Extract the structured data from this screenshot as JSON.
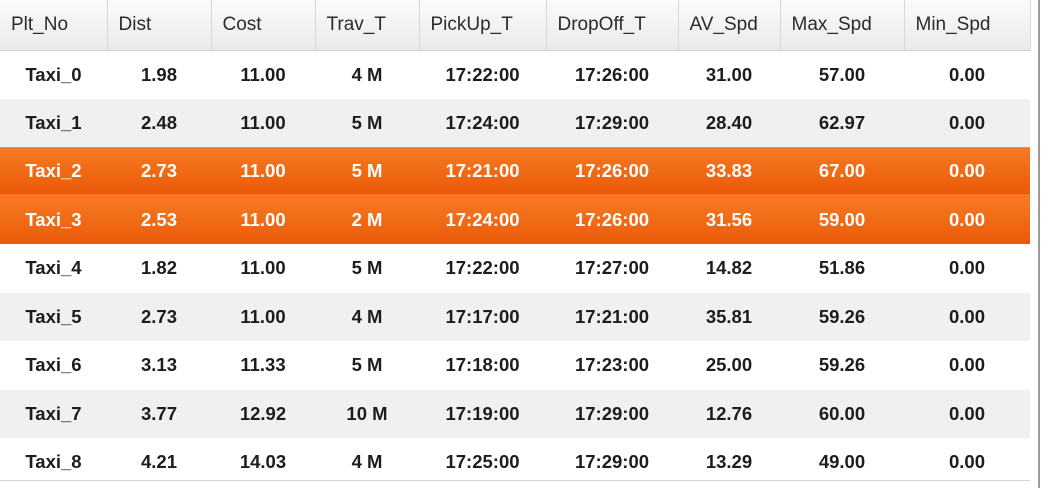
{
  "grid": {
    "columns": [
      "Plt_No",
      "Dist",
      "Cost",
      "Trav_T",
      "PickUp_T",
      "DropOff_T",
      "AV_Spd",
      "Max_Spd",
      "Min_Spd"
    ],
    "rows": [
      {
        "cells": [
          "Taxi_0",
          "1.98",
          "11.00",
          "4 M",
          "17:22:00",
          "17:26:00",
          "31.00",
          "57.00",
          "0.00"
        ],
        "selected": false
      },
      {
        "cells": [
          "Taxi_1",
          "2.48",
          "11.00",
          "5 M",
          "17:24:00",
          "17:29:00",
          "28.40",
          "62.97",
          "0.00"
        ],
        "selected": false
      },
      {
        "cells": [
          "Taxi_2",
          "2.73",
          "11.00",
          "5 M",
          "17:21:00",
          "17:26:00",
          "33.83",
          "67.00",
          "0.00"
        ],
        "selected": true
      },
      {
        "cells": [
          "Taxi_3",
          "2.53",
          "11.00",
          "2 M",
          "17:24:00",
          "17:26:00",
          "31.56",
          "59.00",
          "0.00"
        ],
        "selected": true
      },
      {
        "cells": [
          "Taxi_4",
          "1.82",
          "11.00",
          "5 M",
          "17:22:00",
          "17:27:00",
          "14.82",
          "51.86",
          "0.00"
        ],
        "selected": false
      },
      {
        "cells": [
          "Taxi_5",
          "2.73",
          "11.00",
          "4 M",
          "17:17:00",
          "17:21:00",
          "35.81",
          "59.26",
          "0.00"
        ],
        "selected": false
      },
      {
        "cells": [
          "Taxi_6",
          "3.13",
          "11.33",
          "5 M",
          "17:18:00",
          "17:23:00",
          "25.00",
          "59.26",
          "0.00"
        ],
        "selected": false
      },
      {
        "cells": [
          "Taxi_7",
          "3.77",
          "12.92",
          "10 M",
          "17:19:00",
          "17:29:00",
          "12.76",
          "60.00",
          "0.00"
        ],
        "selected": false
      },
      {
        "cells": [
          "Taxi_8",
          "4.21",
          "14.03",
          "4 M",
          "17:25:00",
          "17:29:00",
          "13.29",
          "49.00",
          "0.00"
        ],
        "selected": false
      }
    ]
  },
  "colors": {
    "selection_top": "#f77a22",
    "selection_bottom": "#ea5a08",
    "stripe": "#f0f0f0"
  }
}
